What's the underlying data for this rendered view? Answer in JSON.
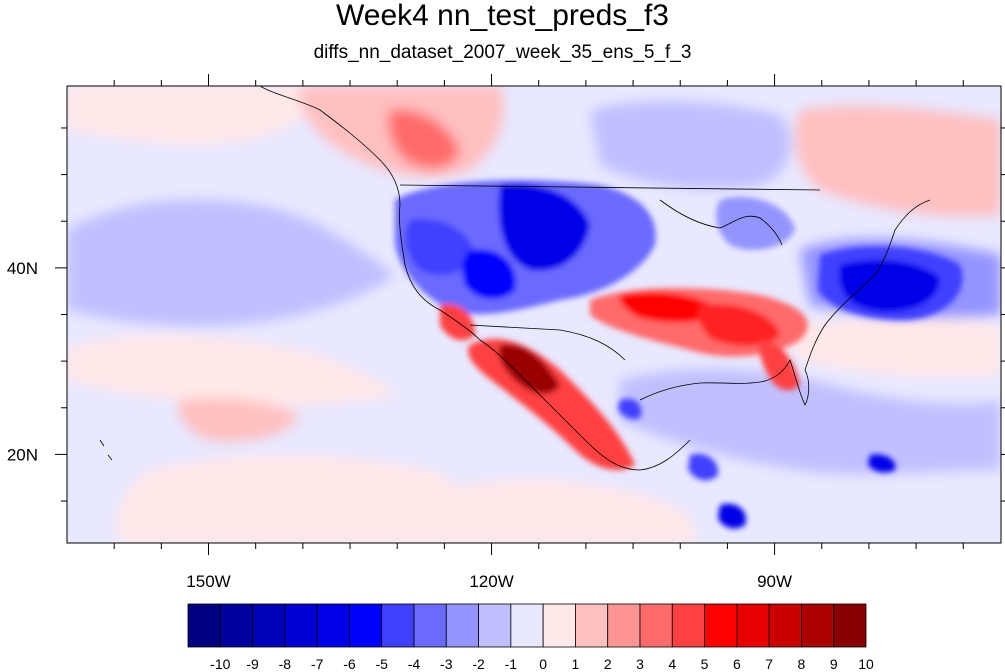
{
  "title": "Week4 nn_test_preds_f3",
  "subtitle": "diffs_nn_dataset_2007_week_35_ens_5_f_3",
  "map": {
    "lon_range": [
      -165,
      -66
    ],
    "lat_range": [
      10.5,
      59.5
    ],
    "x_ticks": [
      {
        "lon": -150,
        "label": "150W"
      },
      {
        "lon": -120,
        "label": "120W"
      },
      {
        "lon": -90,
        "label": "90W"
      }
    ],
    "y_ticks": [
      {
        "lat": 40,
        "label": "40N"
      },
      {
        "lat": 20,
        "label": "20N"
      }
    ]
  },
  "colorbar": {
    "labels": [
      "-10",
      "-9",
      "-8",
      "-7",
      "-6",
      "-5",
      "-4",
      "-3",
      "-2",
      "-1",
      "0",
      "1",
      "2",
      "3",
      "4",
      "5",
      "6",
      "7",
      "8",
      "9",
      "10"
    ],
    "colors": [
      "#000080",
      "#00009c",
      "#0000b8",
      "#0000d4",
      "#0000e8",
      "#0000ff",
      "#4040ff",
      "#6a6aff",
      "#9494ff",
      "#c0c0ff",
      "#e8e8ff",
      "#ffe8e8",
      "#ffc0c0",
      "#ff9494",
      "#ff6a6a",
      "#ff4040",
      "#ff0000",
      "#e80000",
      "#cc0000",
      "#aa0000",
      "#880000"
    ]
  }
}
